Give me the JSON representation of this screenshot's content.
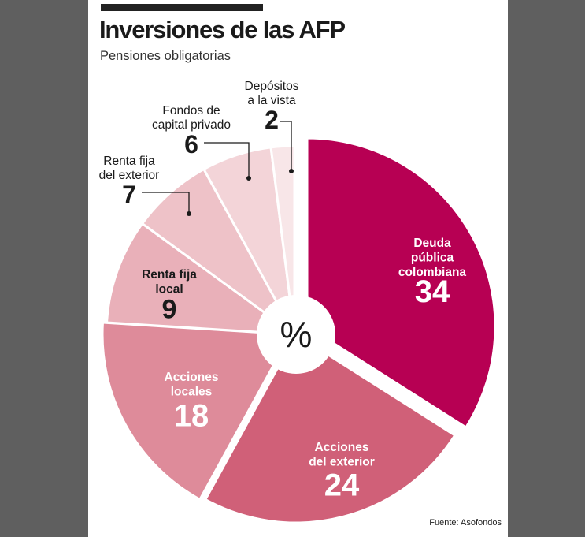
{
  "header": {
    "title": "Inversiones de las AFP",
    "subtitle": "Pensiones obligatorias"
  },
  "chart_data": {
    "type": "pie",
    "title": "Inversiones de las AFP",
    "subtitle": "Pensiones obligatorias",
    "unit": "%",
    "center_label": "%",
    "slices": [
      {
        "label_lines": [
          "Deuda",
          "pública",
          "colombiana"
        ],
        "value": 34,
        "color": "#b70053"
      },
      {
        "label_lines": [
          "Acciones",
          "del exterior"
        ],
        "value": 24,
        "color": "#d06078"
      },
      {
        "label_lines": [
          "Acciones",
          "locales"
        ],
        "value": 18,
        "color": "#de8b9a"
      },
      {
        "label_lines": [
          "Renta fija",
          "local"
        ],
        "value": 9,
        "color": "#e9b0b9"
      },
      {
        "label_lines": [
          "Renta fija",
          "del exterior"
        ],
        "value": 7,
        "color": "#eec2c8"
      },
      {
        "label_lines": [
          "Fondos de",
          "capital privado"
        ],
        "value": 6,
        "color": "#f3d4d8"
      },
      {
        "label_lines": [
          "Depósitos",
          "a la vista"
        ],
        "value": 2,
        "color": "#f8e6e8"
      }
    ],
    "source": "Fuente: Asofondos"
  }
}
